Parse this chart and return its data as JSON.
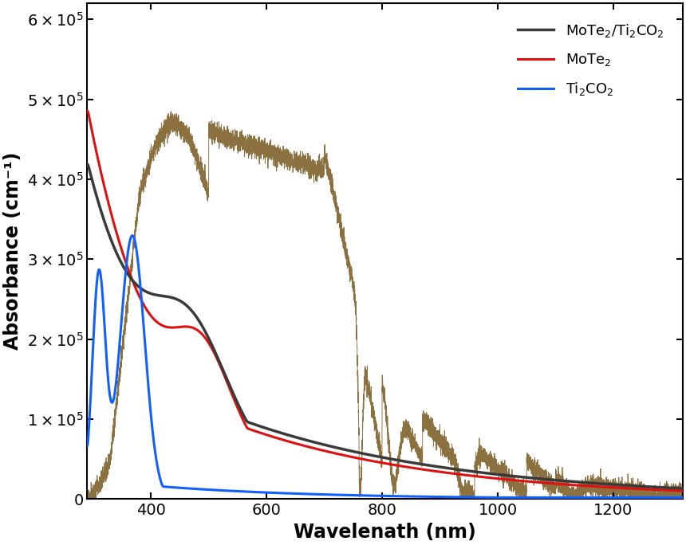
{
  "xlabel": "Wavelenath (nm)",
  "ylabel": "Absorbance (cm⁻¹)",
  "xlim": [
    290,
    1320
  ],
  "ylim": [
    0,
    620000
  ],
  "yticks": [
    0,
    100000,
    200000,
    300000,
    400000,
    500000,
    600000
  ],
  "xticks": [
    400,
    600,
    800,
    1000,
    1200
  ],
  "colors": {
    "heterojunction": "#3a3a3a",
    "mote2": "#e01010",
    "ti2co2": "#1060ff",
    "solar": "#8B7040"
  },
  "linewidths": {
    "heterojunction": 2.5,
    "mote2": 2.2,
    "ti2co2": 2.2,
    "solar": 0.65
  },
  "legend_labels": [
    "MoTe$_2$/Ti$_2$CO$_2$",
    "MoTe$_2$",
    "Ti$_2$CO$_2$"
  ],
  "legend_loc": "upper right",
  "figsize": [
    8.6,
    6.84
  ],
  "dpi": 100,
  "font_size_ticks": 14,
  "font_size_labels": 17
}
